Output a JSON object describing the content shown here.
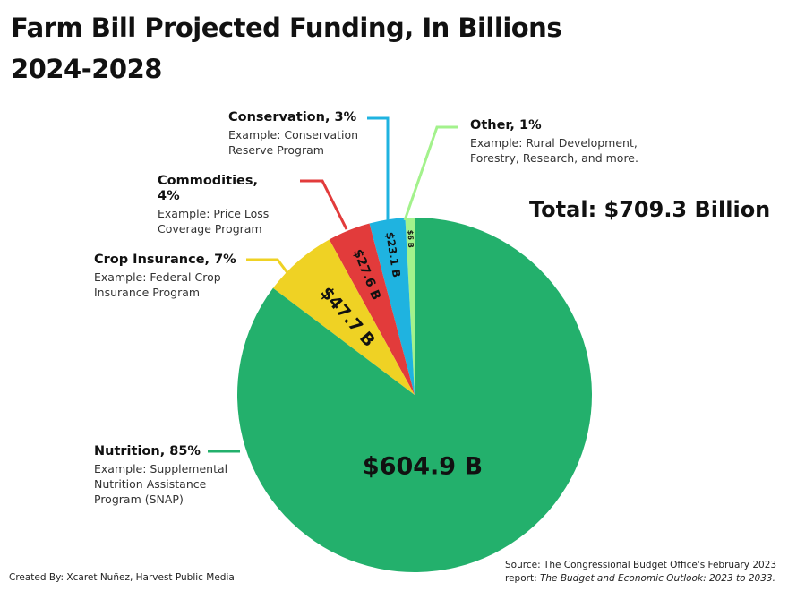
{
  "chart_data": {
    "type": "pie",
    "title": "Farm Bill Projected Funding, In Billions",
    "subtitle": "2024-2028",
    "unit": "billion USD",
    "total_label": "Total: $709.3 Billion",
    "slices": [
      {
        "name": "Other",
        "value": 6,
        "value_label": "$6 B",
        "label": "Other, 1%",
        "example": "Example: Rural Development, Forestry, Research, and more.",
        "color": "#a3f28c"
      },
      {
        "name": "Conservation",
        "value": 23.1,
        "value_label": "$23.1 B",
        "label": "Conservation, 3%",
        "example": "Example: Conservation Reserve Program",
        "color": "#1fb3e0"
      },
      {
        "name": "Commodities",
        "value": 27.6,
        "value_label": "$27.6 B",
        "label": "Commodities, 4%",
        "example": "Example: Price Loss Coverage Program",
        "color": "#e23b3b"
      },
      {
        "name": "Crop Insurance",
        "value": 47.7,
        "value_label": "$47.7 B",
        "label": "Crop Insurance, 7%",
        "example": "Example: Federal Crop Insurance Program",
        "color": "#efd224"
      },
      {
        "name": "Nutrition",
        "value": 604.9,
        "value_label": "$604.9 B",
        "label": "Nutrition, 85%",
        "example": "Example: Supplemental Nutrition Assistance Program (SNAP)",
        "color": "#23b06c"
      }
    ]
  },
  "credit": "Created By: Xcaret Nuñez, Harvest Public Media",
  "source_prefix": "Source: The Congressional Budget Office's February 2023 report: ",
  "source_title": "The Budget and Economic Outlook: 2023 to 2033."
}
